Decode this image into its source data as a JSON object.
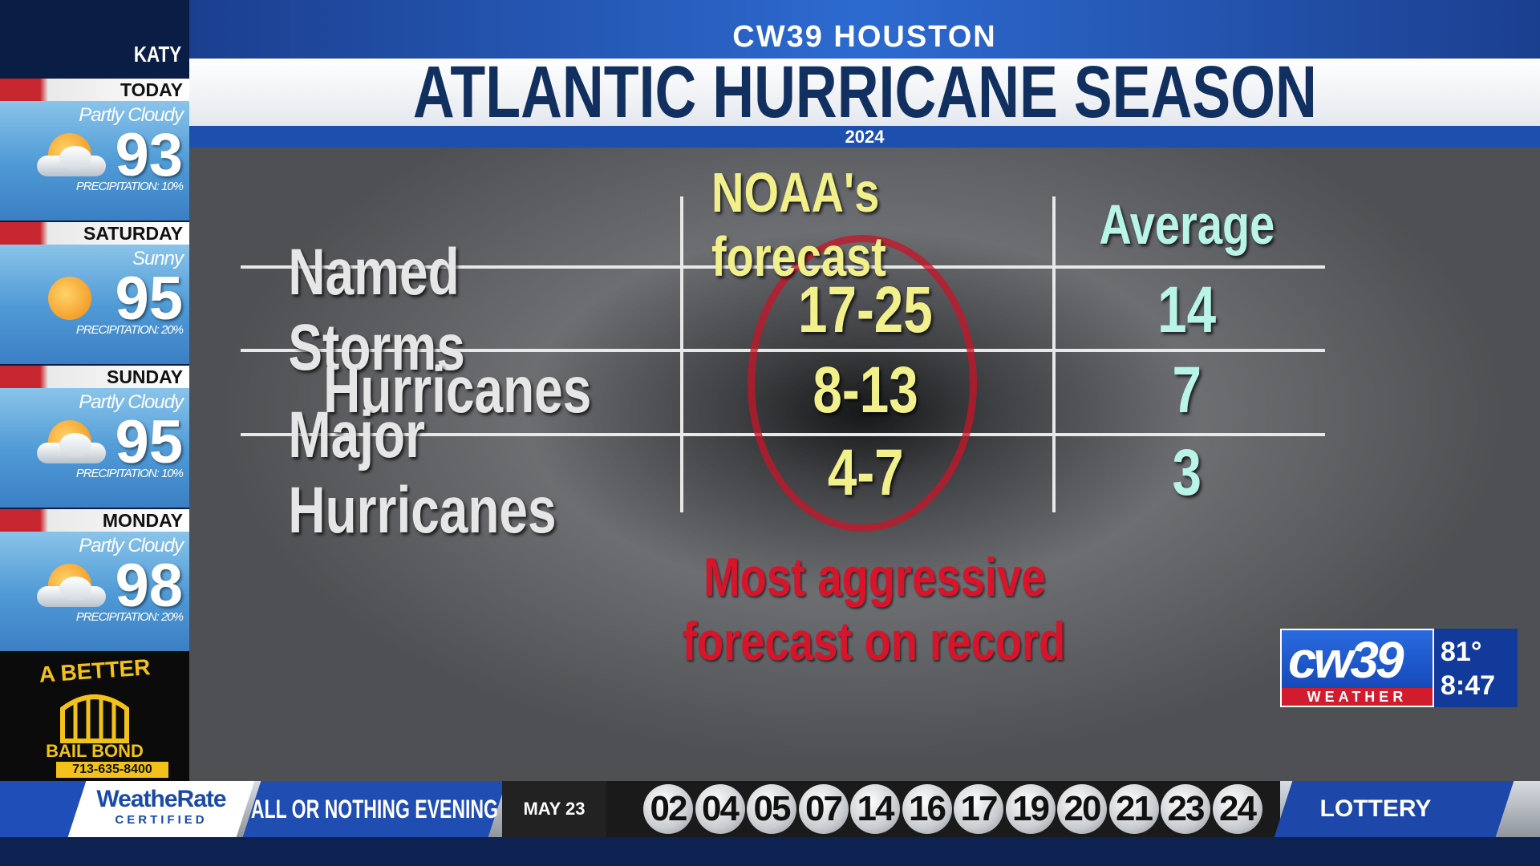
{
  "header": {
    "station": "CW39 HOUSTON",
    "title": "ATLANTIC HURRICANE SEASON",
    "year": "2024"
  },
  "sidebar": {
    "location": "KATY",
    "days": [
      {
        "day": "TODAY",
        "condition": "Partly Cloudy",
        "temp": 93,
        "precipitation": "PRECIPITATION: 10%",
        "icon": "partly"
      },
      {
        "day": "SATURDAY",
        "condition": "Sunny",
        "temp": 95,
        "precipitation": "PRECIPITATION: 20%",
        "icon": "sun"
      },
      {
        "day": "SUNDAY",
        "condition": "Partly Cloudy",
        "temp": 95,
        "precipitation": "PRECIPITATION: 10%",
        "icon": "partly"
      },
      {
        "day": "MONDAY",
        "condition": "Partly Cloudy",
        "temp": 98,
        "precipitation": "PRECIPITATION: 20%",
        "icon": "partly"
      }
    ]
  },
  "ad": {
    "line1": "A BETTER",
    "line2": "BAIL BOND",
    "phone": "713-635-8400"
  },
  "table": {
    "columns": [
      "NOAA's forecast",
      "Average"
    ],
    "rows": [
      [
        "Named Storms",
        "17-25",
        "14"
      ],
      [
        "Hurricanes",
        "8-13",
        "7"
      ],
      [
        "Major Hurricanes",
        "4-7",
        "3"
      ]
    ]
  },
  "annotation": [
    "Most aggressive",
    "forecast on record"
  ],
  "bug": {
    "brand": "cw39",
    "tag": "WEATHER",
    "temp": "81°",
    "time": "8:47"
  },
  "ticker": {
    "sponsor": "WeatheRate",
    "sponsor_sub": "CERTIFIED",
    "game": "ALL OR NOTHING EVENING",
    "date": "MAY 23",
    "numbers": [
      "02",
      "04",
      "05",
      "07",
      "14",
      "16",
      "17",
      "19",
      "20",
      "21",
      "23",
      "24"
    ],
    "label": "LOTTERY"
  }
}
